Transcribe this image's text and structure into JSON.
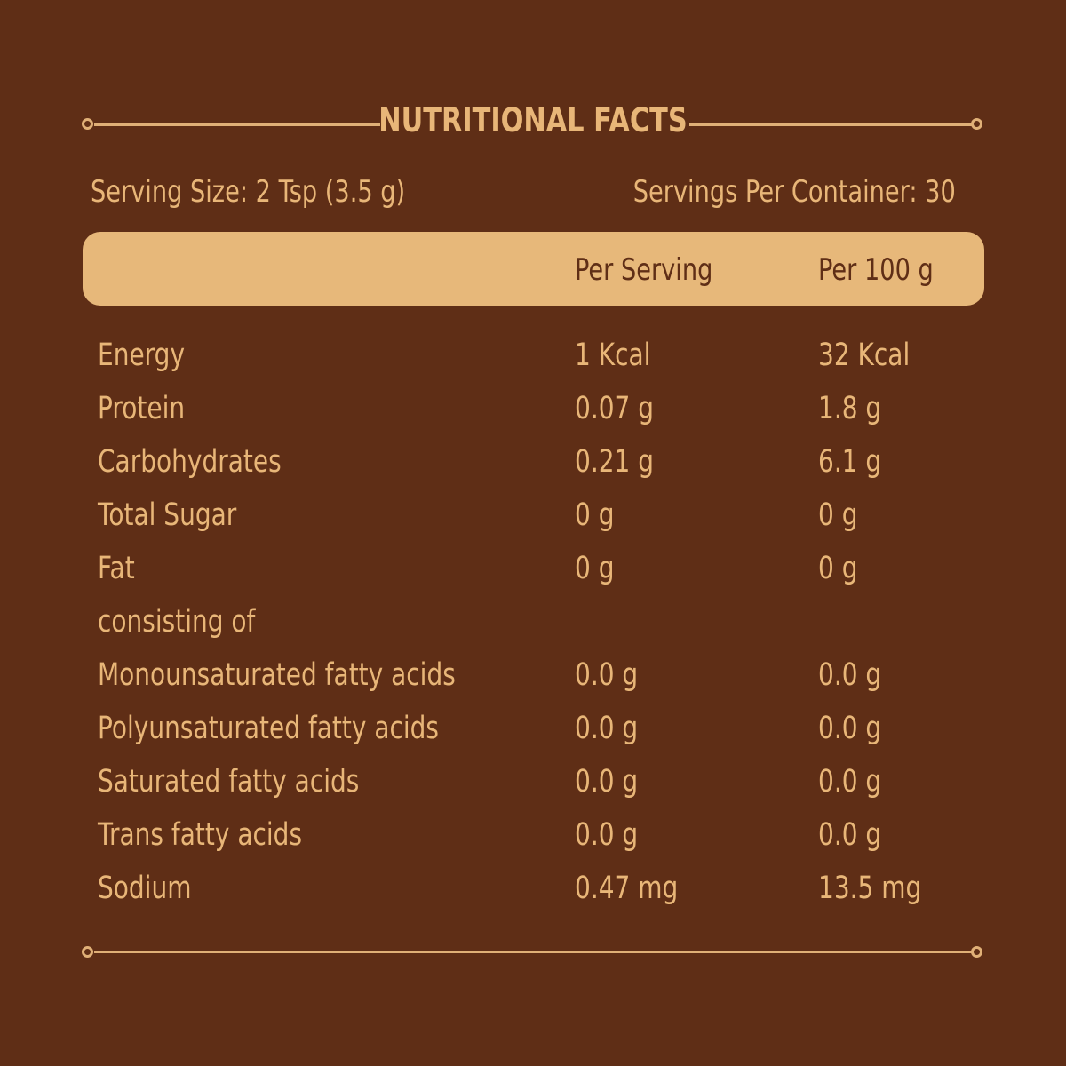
{
  "title": "NUTRITIONAL FACTS",
  "serving_size": "Serving Size: 2 Tsp (3.5 g)",
  "servings_per_container": "Servings Per Container: 30",
  "columns": {
    "per_serving": "Per Serving",
    "per_100g": "Per 100 g"
  },
  "rows": [
    {
      "label": "Energy",
      "per_serving": "1 Kcal",
      "per_100g": "32 Kcal"
    },
    {
      "label": "Protein",
      "per_serving": "0.07 g",
      "per_100g": "1.8 g"
    },
    {
      "label": "Carbohydrates",
      "per_serving": "0.21 g",
      "per_100g": "6.1 g"
    },
    {
      "label": "Total Sugar",
      "per_serving": "0 g",
      "per_100g": "0 g"
    },
    {
      "label": "Fat",
      "per_serving": "0 g",
      "per_100g": "0 g"
    },
    {
      "label": "consisting of",
      "per_serving": "",
      "per_100g": ""
    },
    {
      "label": "Monounsaturated fatty acids",
      "per_serving": "0.0 g",
      "per_100g": "0.0 g"
    },
    {
      "label": "Polyunsaturated fatty acids",
      "per_serving": "0.0 g",
      "per_100g": "0.0 g"
    },
    {
      "label": "Saturated fatty acids",
      "per_serving": "0.0 g",
      "per_100g": "0.0 g"
    },
    {
      "label": "Trans fatty acids",
      "per_serving": "0.0 g",
      "per_100g": "0.0 g"
    },
    {
      "label": "Sodium",
      "per_serving": "0.47 mg",
      "per_100g": "13.5 mg"
    }
  ],
  "colors": {
    "background": "#5f2e16",
    "accent": "#e7b87a"
  }
}
